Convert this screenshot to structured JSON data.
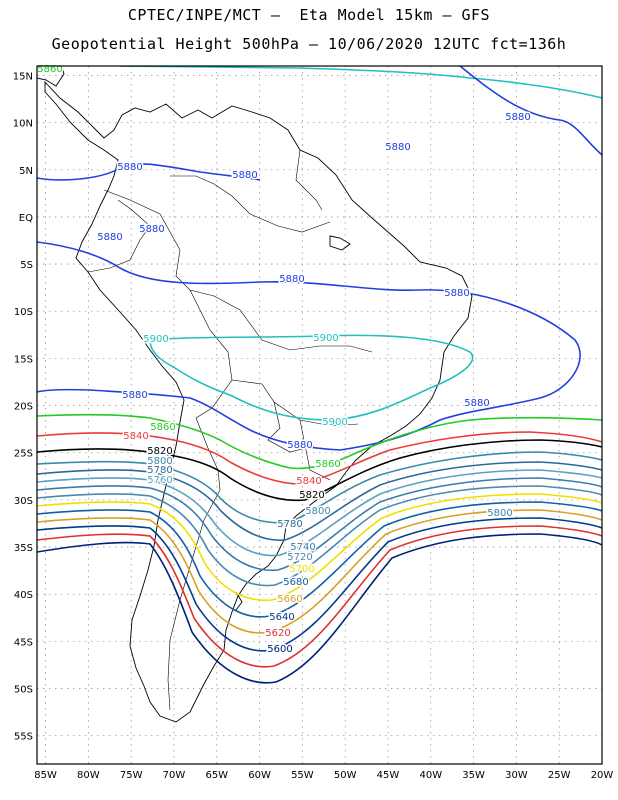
{
  "header": {
    "line1": "CPTEC/INPE/MCT –  Eta Model 15km – GFS",
    "line2": "Geopotential Height 500hPa – 10/06/2020 12UTC fct=136h"
  },
  "map": {
    "projection": "lat-lon",
    "lon_range": [
      -86,
      -20
    ],
    "lat_range": [
      -58,
      16
    ],
    "gridlines": "dotted",
    "lon_ticks": [
      "85W",
      "80W",
      "75W",
      "70W",
      "65W",
      "60W",
      "55W",
      "50W",
      "45W",
      "40W",
      "35W",
      "30W",
      "25W",
      "20W"
    ],
    "lat_ticks": [
      "15N",
      "10N",
      "5N",
      "EQ",
      "5S",
      "10S",
      "15S",
      "20S",
      "25S",
      "30S",
      "35S",
      "40S",
      "45S",
      "50S",
      "55S"
    ],
    "contour_interval": 20,
    "contour_colors": {
      "5600": "#00207a",
      "5620": "#e03030",
      "5640": "#003a8c",
      "5660": "#d8a020",
      "5680": "#1060a0",
      "5700": "#f0e000",
      "5720": "#4a8ab0",
      "5740": "#3a7ab0",
      "5760": "#5aa0c0",
      "5780": "#2a6a9a",
      "5800": "#3a8aaa",
      "5820": "#000000",
      "5840": "#ee3a3a",
      "5860": "#22cc22",
      "5880": "#2040e0",
      "5900": "#20c0c0"
    },
    "labels": [
      {
        "text": "5880"
      },
      {
        "text": "5880"
      },
      {
        "text": "5880"
      },
      {
        "text": "5880"
      },
      {
        "text": "5880"
      },
      {
        "text": "5880"
      },
      {
        "text": "5880"
      },
      {
        "text": "5880"
      },
      {
        "text": "5880"
      },
      {
        "text": "5880"
      },
      {
        "text": "5880"
      },
      {
        "text": "5900"
      },
      {
        "text": "5900"
      },
      {
        "text": "5900"
      },
      {
        "text": "5860"
      },
      {
        "text": "5860"
      },
      {
        "text": "5860"
      },
      {
        "text": "5840"
      },
      {
        "text": "5840"
      },
      {
        "text": "5820"
      },
      {
        "text": "5820"
      },
      {
        "text": "5800"
      },
      {
        "text": "5800"
      },
      {
        "text": "5800"
      },
      {
        "text": "5780"
      },
      {
        "text": "5780"
      },
      {
        "text": "5760"
      },
      {
        "text": "5740"
      },
      {
        "text": "5720"
      },
      {
        "text": "5700"
      },
      {
        "text": "5680"
      },
      {
        "text": "5660"
      },
      {
        "text": "5640"
      },
      {
        "text": "5620"
      },
      {
        "text": "5600"
      }
    ]
  }
}
